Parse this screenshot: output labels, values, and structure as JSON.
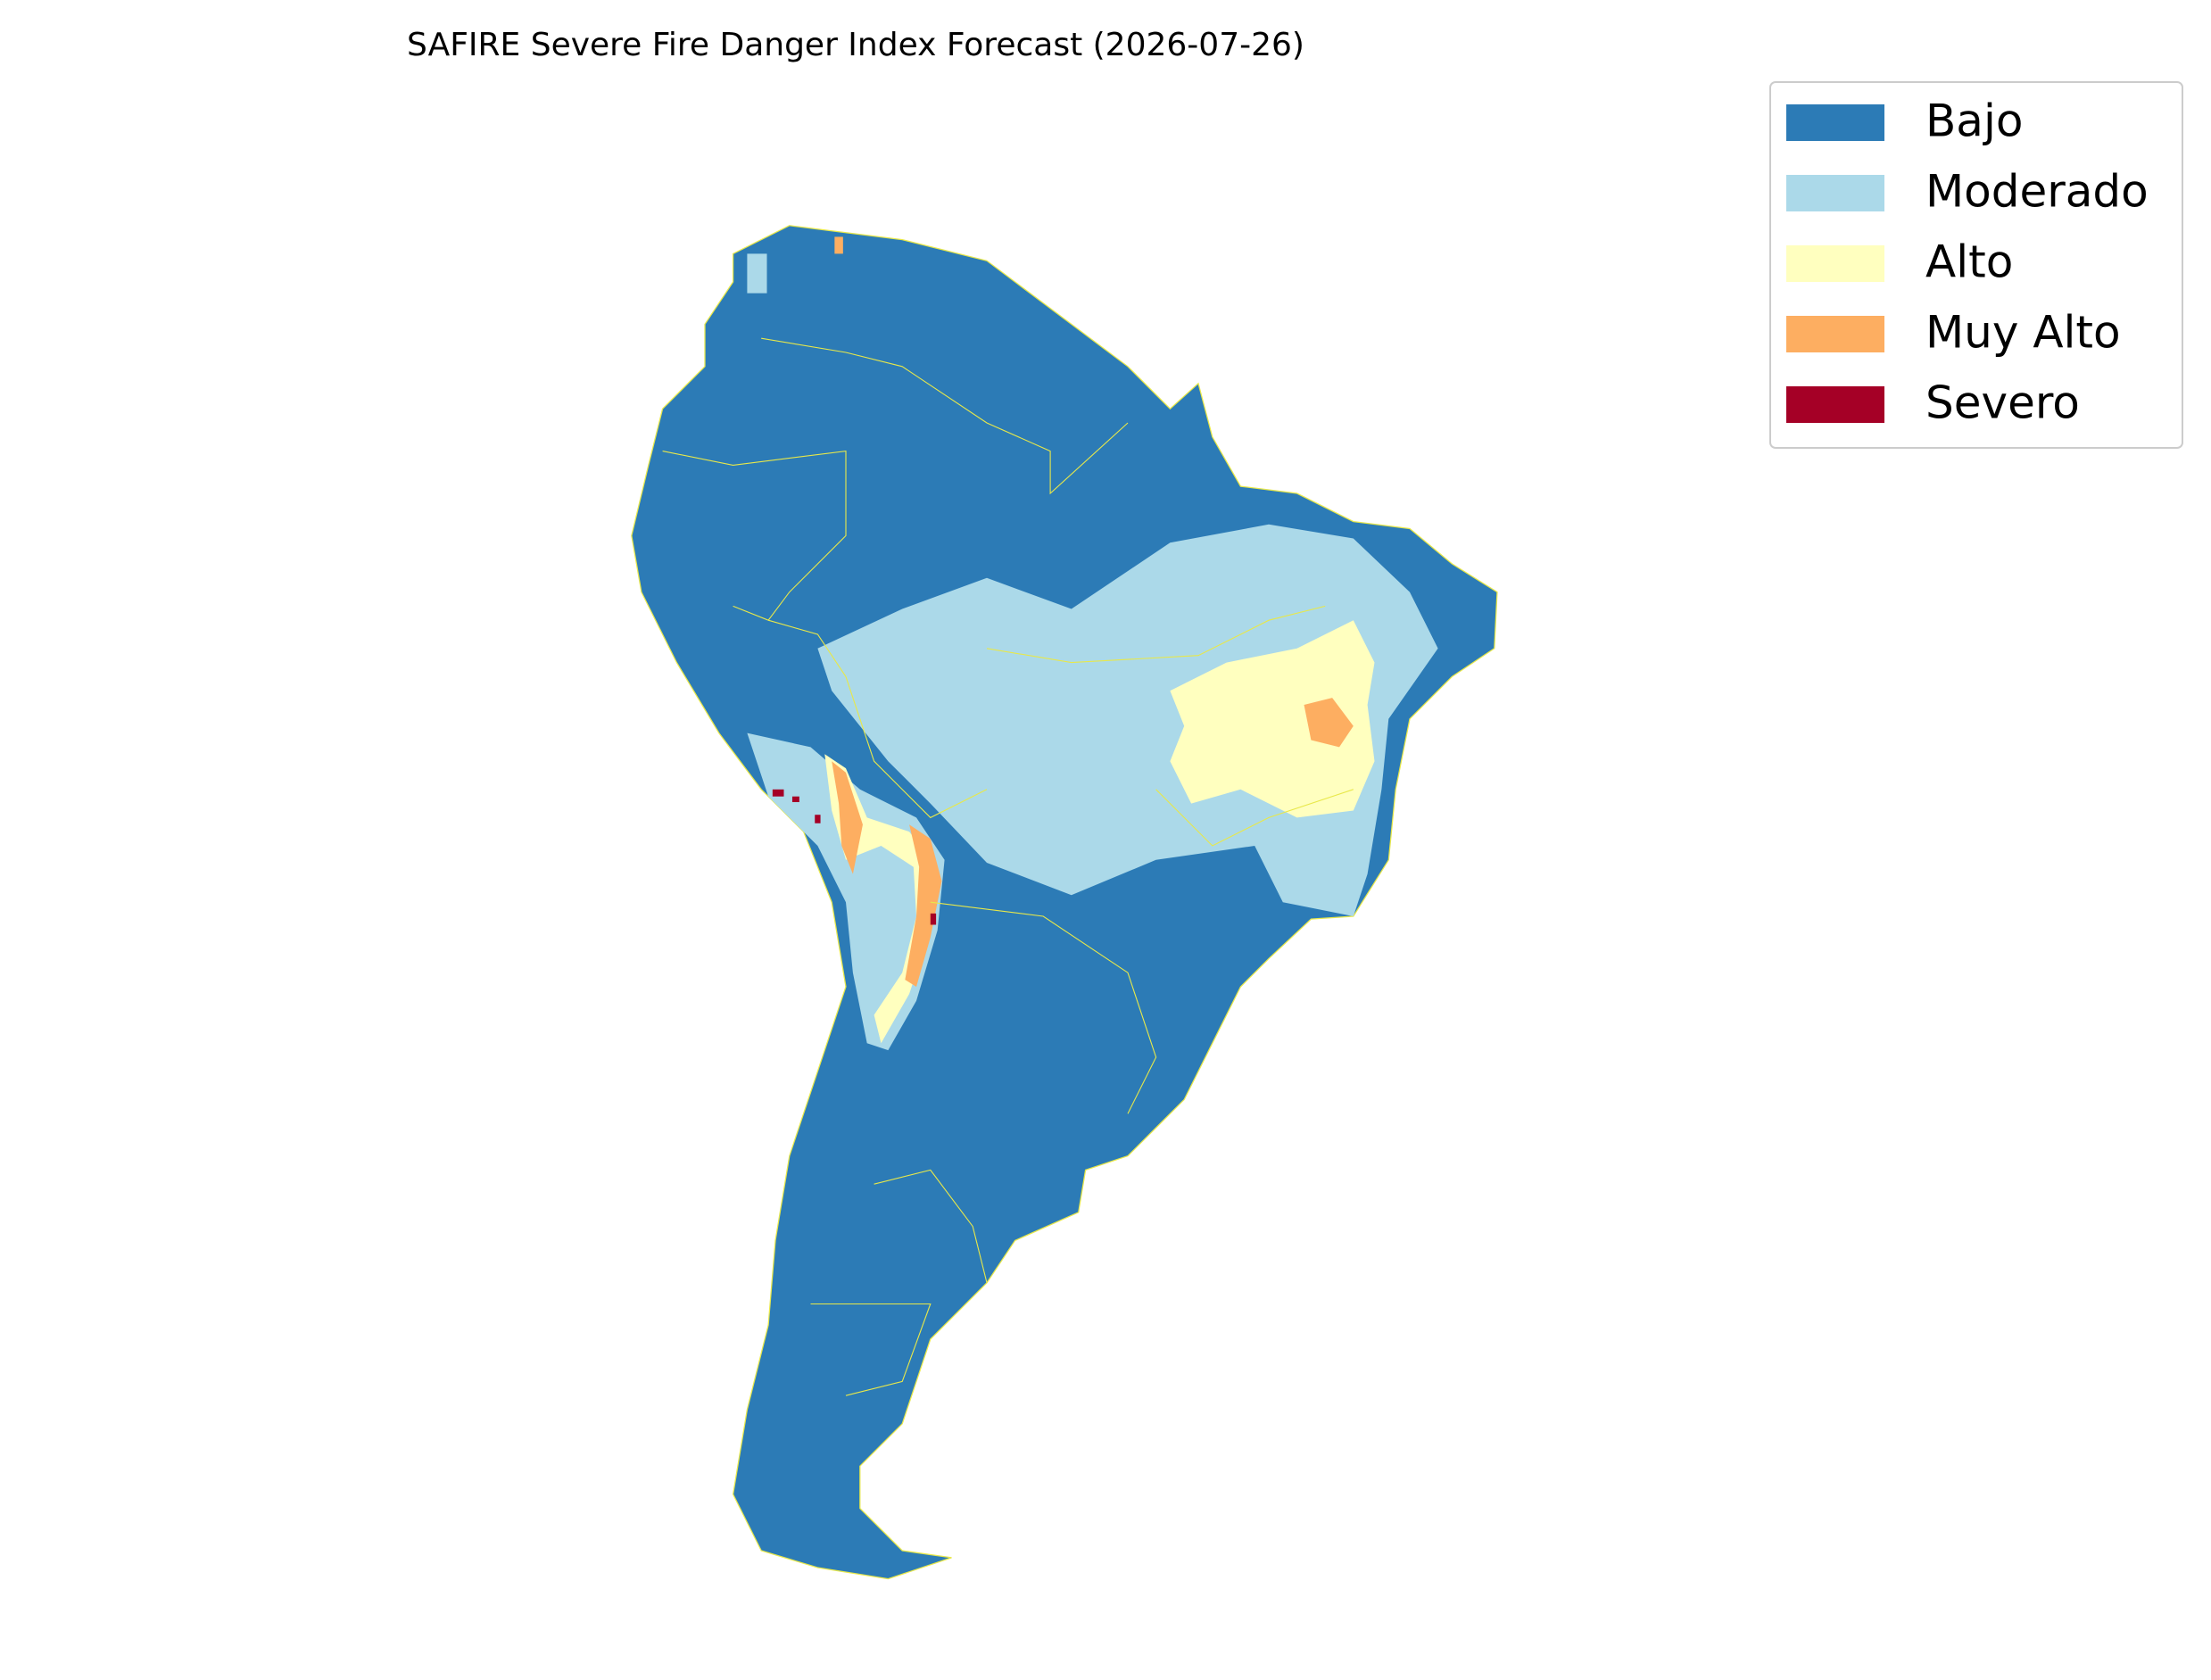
{
  "title": "SAFIRE Severe Fire Danger Index Forecast (2026-07-26)",
  "legend": [
    {
      "label": "Bajo",
      "color": "#2c7bb6"
    },
    {
      "label": "Moderado",
      "color": "#abd9e9"
    },
    {
      "label": "Alto",
      "color": "#ffffbf"
    },
    {
      "label": "Muy Alto",
      "color": "#fdae61"
    },
    {
      "label": "Severo",
      "color": "#a50026"
    }
  ]
}
